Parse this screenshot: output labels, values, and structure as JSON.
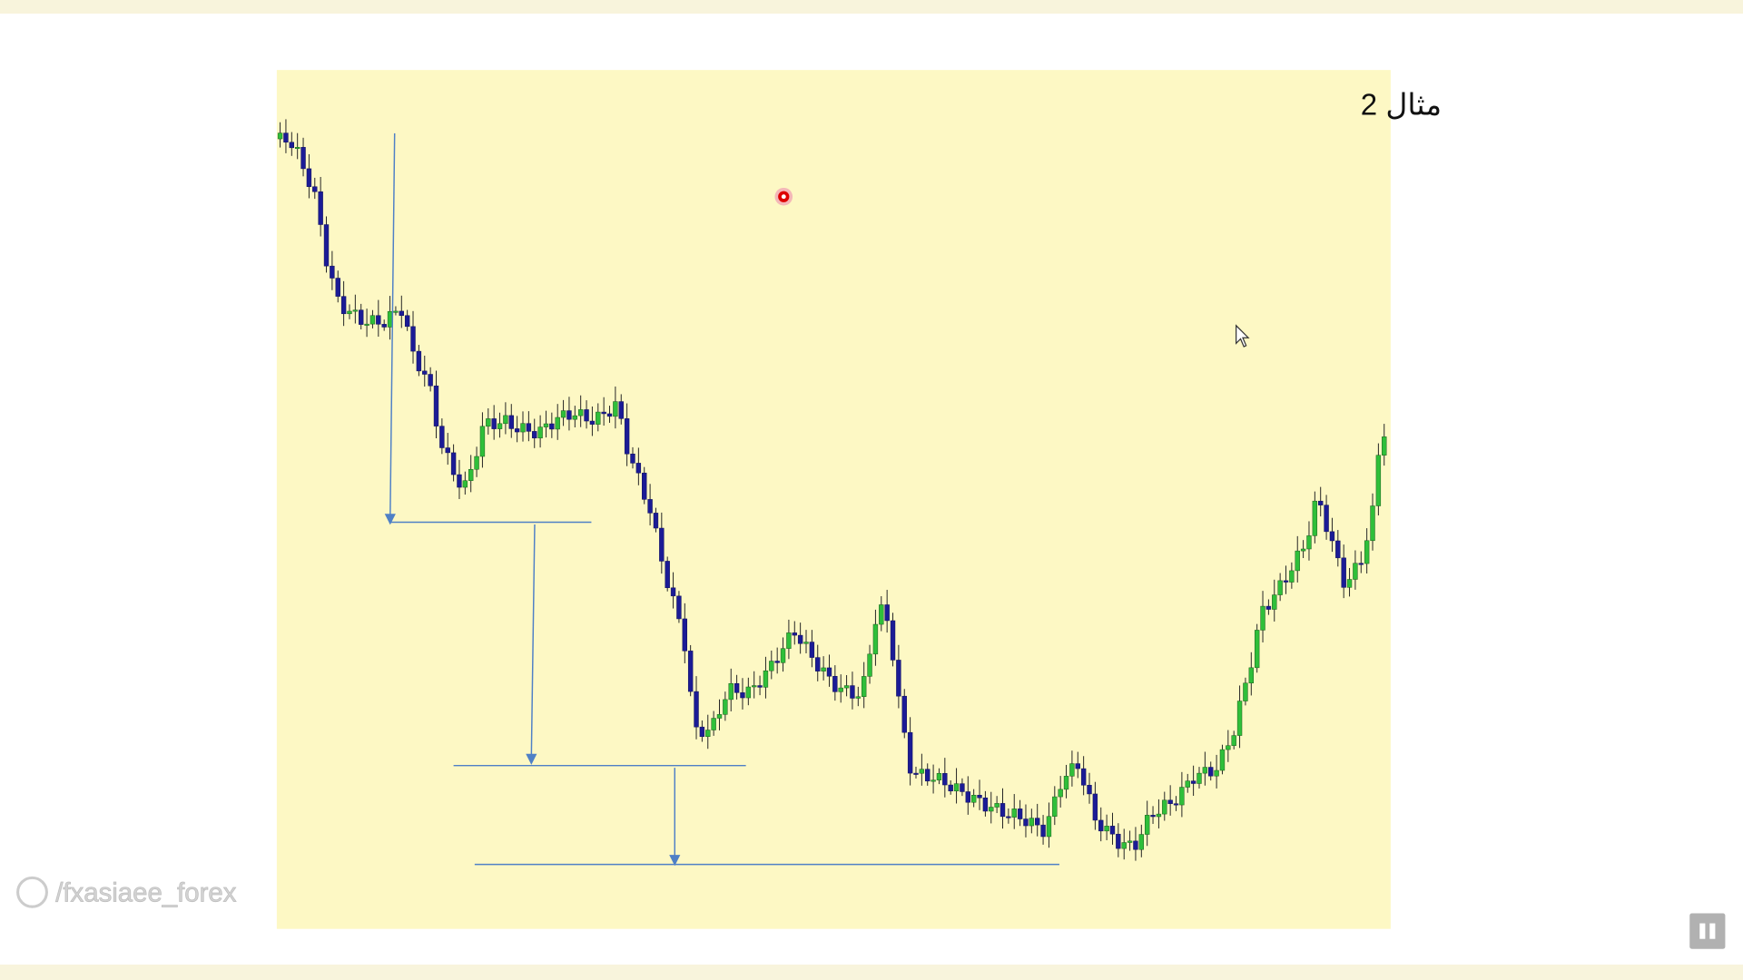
{
  "slide": {
    "title": "مثال 2"
  },
  "watermark": "/fxasiaee_forex"
}
